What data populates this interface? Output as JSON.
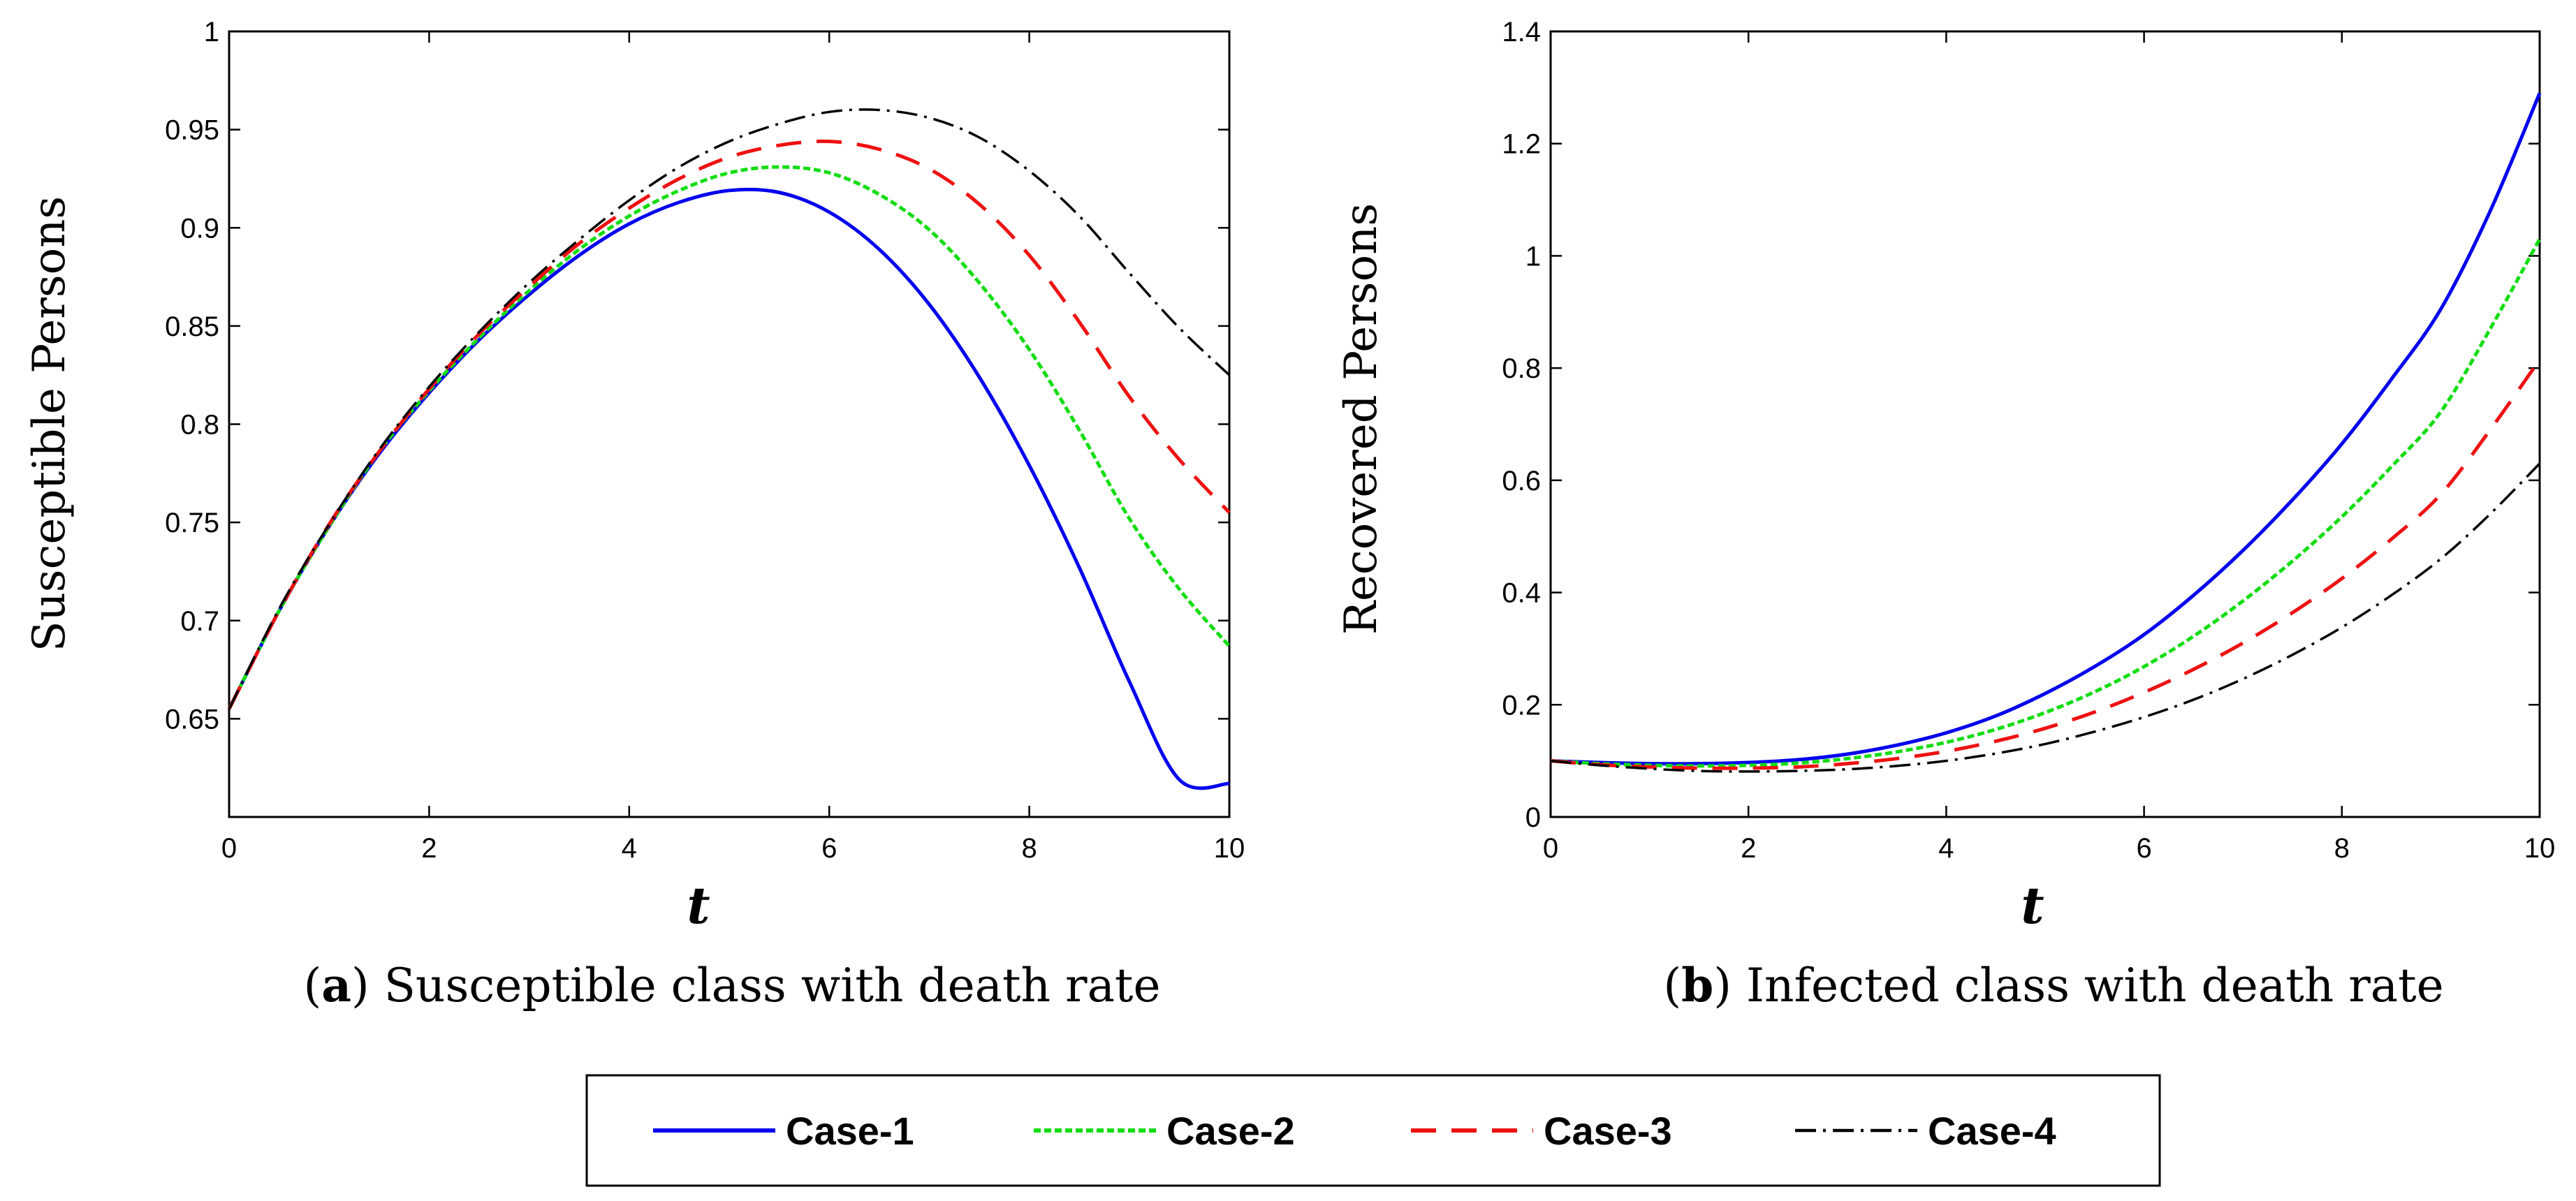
{
  "chart_data": [
    {
      "type": "line",
      "panel": "a",
      "caption_letter": "a",
      "caption_text": "Susceptible class with death rate",
      "xlabel": "t",
      "ylabel": "Susceptible Persons",
      "xlim": [
        0,
        10
      ],
      "ylim": [
        0.6,
        1.0
      ],
      "xticks": [
        "0",
        "2",
        "4",
        "6",
        "8",
        "10"
      ],
      "yticks": [
        "0.65",
        "0.7",
        "0.75",
        "0.8",
        "0.85",
        "0.9",
        "0.95",
        "1"
      ],
      "grid": false,
      "x": [
        0,
        0.5,
        1,
        1.5,
        2,
        2.5,
        3,
        3.5,
        4,
        4.5,
        5,
        5.5,
        6,
        6.5,
        7,
        7.5,
        8,
        8.5,
        9,
        9.5,
        10
      ],
      "series": [
        {
          "name": "Case-1",
          "values": [
            0.655,
            0.705,
            0.748,
            0.785,
            0.816,
            0.843,
            0.866,
            0.886,
            0.902,
            0.913,
            0.919,
            0.918,
            0.908,
            0.889,
            0.861,
            0.824,
            0.779,
            0.727,
            0.669,
            0.619,
            0.617
          ]
        },
        {
          "name": "Case-2",
          "values": [
            0.655,
            0.705,
            0.748,
            0.786,
            0.817,
            0.844,
            0.868,
            0.889,
            0.906,
            0.919,
            0.928,
            0.931,
            0.928,
            0.917,
            0.899,
            0.872,
            0.838,
            0.797,
            0.752,
            0.716,
            0.687
          ]
        },
        {
          "name": "Case-3",
          "values": [
            0.655,
            0.705,
            0.749,
            0.786,
            0.818,
            0.846,
            0.87,
            0.892,
            0.91,
            0.925,
            0.936,
            0.942,
            0.944,
            0.94,
            0.93,
            0.912,
            0.886,
            0.852,
            0.814,
            0.782,
            0.755
          ]
        },
        {
          "name": "Case-4",
          "values": [
            0.655,
            0.706,
            0.749,
            0.787,
            0.819,
            0.847,
            0.872,
            0.894,
            0.914,
            0.931,
            0.944,
            0.953,
            0.959,
            0.96,
            0.956,
            0.946,
            0.929,
            0.906,
            0.877,
            0.849,
            0.825
          ]
        }
      ]
    },
    {
      "type": "line",
      "panel": "b",
      "caption_letter": "b",
      "caption_text": "Infected class with death rate",
      "xlabel": "t",
      "ylabel": "Recovered Persons",
      "xlim": [
        0,
        10
      ],
      "ylim": [
        0,
        1.4
      ],
      "xticks": [
        "0",
        "2",
        "4",
        "6",
        "8",
        "10"
      ],
      "yticks": [
        "0",
        "0.2",
        "0.4",
        "0.6",
        "0.8",
        "1",
        "1.2",
        "1.4"
      ],
      "grid": false,
      "x": [
        0,
        0.5,
        1,
        1.5,
        2,
        2.5,
        3,
        3.5,
        4,
        4.5,
        5,
        5.5,
        6,
        6.5,
        7,
        7.5,
        8,
        8.5,
        9,
        9.5,
        10
      ],
      "series": [
        {
          "name": "Case-1",
          "values": [
            0.1,
            0.097,
            0.095,
            0.095,
            0.097,
            0.102,
            0.112,
            0.128,
            0.15,
            0.18,
            0.22,
            0.268,
            0.325,
            0.395,
            0.475,
            0.565,
            0.665,
            0.78,
            0.905,
            1.08,
            1.29
          ]
        },
        {
          "name": "Case-2",
          "values": [
            0.1,
            0.095,
            0.092,
            0.091,
            0.092,
            0.096,
            0.104,
            0.116,
            0.133,
            0.156,
            0.186,
            0.223,
            0.268,
            0.322,
            0.385,
            0.456,
            0.535,
            0.624,
            0.722,
            0.87,
            1.03
          ]
        },
        {
          "name": "Case-3",
          "values": [
            0.1,
            0.093,
            0.089,
            0.087,
            0.087,
            0.089,
            0.095,
            0.104,
            0.117,
            0.135,
            0.158,
            0.187,
            0.222,
            0.263,
            0.31,
            0.364,
            0.425,
            0.495,
            0.575,
            0.69,
            0.815
          ]
        },
        {
          "name": "Case-4",
          "values": [
            0.1,
            0.092,
            0.086,
            0.082,
            0.081,
            0.082,
            0.085,
            0.091,
            0.1,
            0.113,
            0.13,
            0.152,
            0.178,
            0.209,
            0.246,
            0.289,
            0.338,
            0.395,
            0.46,
            0.54,
            0.63
          ]
        }
      ]
    }
  ],
  "legend": {
    "placement": "bottom-center",
    "entries": [
      {
        "name": "Case-1",
        "color": "#0000ee"
      },
      {
        "name": "Case-2",
        "color": "#11dd11"
      },
      {
        "name": "Case-3",
        "color": "#ee1111"
      },
      {
        "name": "Case-4",
        "color": "#000000"
      }
    ]
  }
}
